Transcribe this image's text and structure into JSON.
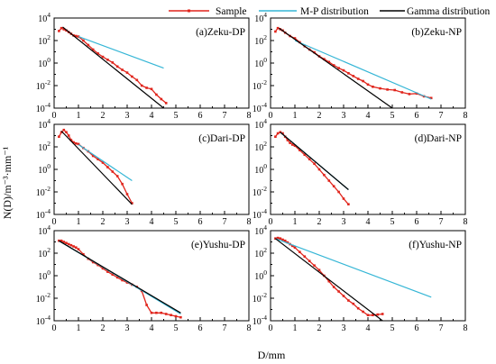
{
  "legend": {
    "sample_label": "Sample",
    "mp_label": "M-P distribution",
    "gamma_label": "Gamma distribution"
  },
  "axes": {
    "xlabel": "D/mm",
    "ylabel": "N(D)/m⁻³·mm⁻¹"
  },
  "colors": {
    "sample": "#e0241b",
    "mp": "#35b6d6",
    "gamma": "#000000"
  },
  "chart_data": [
    {
      "type": "line",
      "title": "(a)Zeku-DP",
      "xlim": [
        0,
        8
      ],
      "ylim_exp": [
        -4,
        4
      ],
      "xticks": [
        "0",
        "1",
        "2",
        "3",
        "4",
        "5",
        "6",
        "7",
        "8"
      ],
      "yticks": [
        4,
        2,
        0,
        -2,
        -4
      ],
      "y_scale": "log",
      "series": [
        {
          "name": "Sample",
          "x": [
            0.2,
            0.3,
            0.4,
            0.5,
            0.6,
            0.7,
            0.8,
            0.9,
            1.0,
            1.2,
            1.4,
            1.6,
            1.8,
            2.0,
            2.2,
            2.4,
            2.6,
            2.8,
            3.0,
            3.2,
            3.4,
            3.6,
            3.8,
            4.0,
            4.2,
            4.4,
            4.6
          ],
          "log10y": [
            2.85,
            3.1,
            3.0,
            2.9,
            2.75,
            2.6,
            2.45,
            2.4,
            2.35,
            2.0,
            1.6,
            1.2,
            0.85,
            0.55,
            0.3,
            0.05,
            -0.3,
            -0.6,
            -0.85,
            -1.2,
            -1.5,
            -2.0,
            -2.2,
            -2.3,
            -2.8,
            -3.2,
            -3.55
          ]
        },
        {
          "name": "M-P distribution",
          "x": [
            1.0,
            4.5
          ],
          "log10y": [
            2.35,
            -0.45
          ]
        },
        {
          "name": "Gamma distribution",
          "x": [
            0.35,
            4.5
          ],
          "log10y": [
            3.2,
            -4.0
          ]
        }
      ]
    },
    {
      "type": "line",
      "title": "(b)Zeku-NP",
      "xlim": [
        0,
        8
      ],
      "ylim_exp": [
        -4,
        4
      ],
      "xticks": [
        "0",
        "1",
        "2",
        "3",
        "4",
        "5",
        "6",
        "7",
        "8"
      ],
      "yticks": [
        4,
        2,
        0,
        -2,
        -4
      ],
      "y_scale": "log",
      "series": [
        {
          "name": "Sample",
          "x": [
            0.2,
            0.3,
            0.4,
            0.5,
            0.6,
            0.8,
            1.0,
            1.2,
            1.4,
            1.6,
            1.8,
            2.0,
            2.2,
            2.4,
            2.6,
            2.8,
            3.0,
            3.2,
            3.4,
            3.6,
            3.8,
            4.0,
            4.2,
            4.5,
            4.8,
            5.1,
            5.4,
            5.7,
            6.0,
            6.3,
            6.6
          ],
          "log10y": [
            2.8,
            3.1,
            3.0,
            2.9,
            2.7,
            2.4,
            2.2,
            1.85,
            1.5,
            1.2,
            0.95,
            0.6,
            0.35,
            0.1,
            -0.2,
            -0.45,
            -0.65,
            -0.9,
            -1.15,
            -1.4,
            -1.6,
            -1.9,
            -2.1,
            -2.25,
            -2.35,
            -2.4,
            -2.6,
            -2.75,
            -2.7,
            -2.95,
            -3.1
          ]
        },
        {
          "name": "M-P distribution",
          "x": [
            1.0,
            6.6
          ],
          "log10y": [
            2.0,
            -3.2
          ]
        },
        {
          "name": "Gamma distribution",
          "x": [
            0.35,
            5.0
          ],
          "log10y": [
            3.1,
            -4.0
          ]
        }
      ]
    },
    {
      "type": "line",
      "title": "(c)Dari-DP",
      "xlim": [
        0,
        8
      ],
      "ylim_exp": [
        -4,
        4
      ],
      "xticks": [
        "0",
        "1",
        "2",
        "3",
        "4",
        "5",
        "6",
        "7",
        "8"
      ],
      "yticks": [
        4,
        2,
        0,
        -2,
        -4
      ],
      "y_scale": "log",
      "series": [
        {
          "name": "Sample",
          "x": [
            0.2,
            0.3,
            0.4,
            0.5,
            0.6,
            0.7,
            0.8,
            0.9,
            1.0,
            1.2,
            1.4,
            1.6,
            1.8,
            2.0,
            2.2,
            2.4,
            2.6,
            2.8,
            3.0,
            3.2
          ],
          "log10y": [
            2.9,
            3.3,
            3.5,
            3.3,
            3.0,
            2.6,
            2.4,
            2.3,
            2.25,
            1.9,
            1.6,
            1.2,
            0.9,
            0.6,
            0.2,
            -0.2,
            -0.6,
            -1.3,
            -2.2,
            -3.0
          ]
        },
        {
          "name": "M-P distribution",
          "x": [
            1.0,
            3.2
          ],
          "log10y": [
            2.2,
            -1.0
          ]
        },
        {
          "name": "Gamma distribution",
          "x": [
            0.3,
            3.2
          ],
          "log10y": [
            3.4,
            -3.1
          ]
        }
      ]
    },
    {
      "type": "line",
      "title": "(d)Dari-NP",
      "xlim": [
        0,
        8
      ],
      "ylim_exp": [
        -4,
        4
      ],
      "xticks": [
        "0",
        "1",
        "2",
        "3",
        "4",
        "5",
        "6",
        "7",
        "8"
      ],
      "yticks": [
        4,
        2,
        0,
        -2,
        -4
      ],
      "y_scale": "log",
      "series": [
        {
          "name": "Sample",
          "x": [
            0.2,
            0.3,
            0.4,
            0.5,
            0.6,
            0.7,
            0.8,
            0.9,
            1.0,
            1.2,
            1.4,
            1.6,
            1.8,
            2.0,
            2.2,
            2.4,
            2.6,
            2.8,
            3.0,
            3.2
          ],
          "log10y": [
            2.9,
            3.2,
            3.3,
            3.2,
            2.9,
            2.6,
            2.35,
            2.2,
            2.1,
            1.7,
            1.3,
            0.9,
            0.5,
            0.0,
            -0.5,
            -1.0,
            -1.5,
            -2.0,
            -2.6,
            -3.1
          ]
        },
        {
          "name": "M-P distribution",
          "x": [
            0.4,
            3.2
          ],
          "log10y": [
            3.3,
            -1.8
          ]
        },
        {
          "name": "Gamma distribution",
          "x": [
            0.4,
            3.2
          ],
          "log10y": [
            3.3,
            -1.8
          ]
        }
      ]
    },
    {
      "type": "line",
      "title": "(e)Yushu-DP",
      "xlim": [
        0,
        8
      ],
      "ylim_exp": [
        -4,
        4
      ],
      "xticks": [
        "0",
        "1",
        "2",
        "3",
        "4",
        "5",
        "6",
        "7",
        "8"
      ],
      "yticks": [
        4,
        2,
        0,
        -2,
        -4
      ],
      "y_scale": "log",
      "series": [
        {
          "name": "Sample",
          "x": [
            0.2,
            0.3,
            0.4,
            0.5,
            0.6,
            0.7,
            0.8,
            0.9,
            1.0,
            1.2,
            1.4,
            1.6,
            1.8,
            2.0,
            2.2,
            2.4,
            2.6,
            2.8,
            3.0,
            3.2,
            3.4,
            3.6,
            3.8,
            4.0,
            4.2,
            4.4,
            4.6,
            4.8,
            5.0,
            5.2
          ],
          "log10y": [
            3.1,
            3.1,
            3.0,
            2.9,
            2.8,
            2.7,
            2.6,
            2.5,
            2.35,
            1.9,
            1.5,
            1.2,
            0.95,
            0.65,
            0.35,
            0.1,
            -0.15,
            -0.4,
            -0.6,
            -0.8,
            -1.0,
            -1.35,
            -2.6,
            -3.3,
            -3.3,
            -3.3,
            -3.4,
            -3.5,
            -3.6,
            -3.7
          ]
        },
        {
          "name": "M-P distribution",
          "x": [
            0.2,
            5.2
          ],
          "log10y": [
            3.1,
            -3.4
          ]
        },
        {
          "name": "Gamma distribution",
          "x": [
            0.2,
            5.2
          ],
          "log10y": [
            3.1,
            -3.3
          ]
        }
      ]
    },
    {
      "type": "line",
      "title": "(f)Yushu-NP",
      "xlim": [
        0,
        8
      ],
      "ylim_exp": [
        -4,
        4
      ],
      "xticks": [
        "0",
        "1",
        "2",
        "3",
        "4",
        "5",
        "6",
        "7",
        "8"
      ],
      "yticks": [
        4,
        2,
        0,
        -2,
        -4
      ],
      "y_scale": "log",
      "series": [
        {
          "name": "Sample",
          "x": [
            0.2,
            0.3,
            0.4,
            0.5,
            0.6,
            0.7,
            0.8,
            0.9,
            1.0,
            1.2,
            1.4,
            1.6,
            1.8,
            2.0,
            2.2,
            2.4,
            2.6,
            2.8,
            3.0,
            3.2,
            3.4,
            3.6,
            3.8,
            4.0,
            4.2,
            4.4,
            4.6
          ],
          "log10y": [
            3.3,
            3.35,
            3.3,
            3.2,
            3.1,
            2.95,
            2.8,
            2.65,
            2.5,
            2.1,
            1.7,
            1.3,
            0.9,
            0.5,
            0.0,
            -0.5,
            -1.0,
            -1.4,
            -1.8,
            -2.2,
            -2.5,
            -2.9,
            -3.2,
            -3.5,
            -3.5,
            -3.45,
            -3.4
          ]
        },
        {
          "name": "M-P distribution",
          "x": [
            0.2,
            6.6
          ],
          "log10y": [
            3.3,
            -1.9
          ]
        },
        {
          "name": "Gamma distribution",
          "x": [
            0.2,
            4.6
          ],
          "log10y": [
            3.3,
            -4.0
          ]
        }
      ]
    }
  ]
}
